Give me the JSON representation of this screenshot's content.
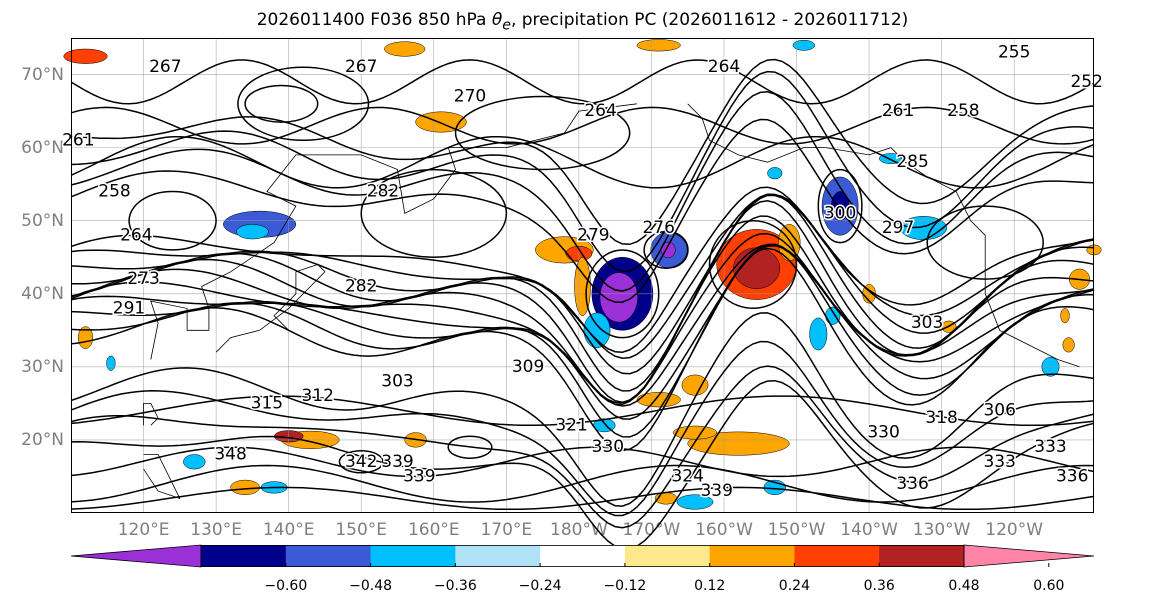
{
  "title": {
    "prefix": "2026011400 F036 850 hPa ",
    "symbol": "θ",
    "subscript": "e",
    "suffix": ", precipitation PC (2026011612 - 2026011712)"
  },
  "chart_data": {
    "type": "heatmap",
    "title": "2026011400 F036 850 hPa θe, precipitation PC (2026011612 - 2026011712)",
    "projection": "Plate Carree map, approx. 110°E–110°W, 10°N–75°N",
    "lat_ticks": [
      "20°N",
      "30°N",
      "40°N",
      "50°N",
      "60°N",
      "70°N"
    ],
    "lon_ticks": [
      "120°E",
      "130°E",
      "140°E",
      "150°E",
      "160°E",
      "170°E",
      "180°W",
      "170°W",
      "160°W",
      "150°W",
      "140°W",
      "130°W",
      "120°W"
    ],
    "grid": true,
    "colorbar": {
      "orientation": "horizontal",
      "extend": "both",
      "ticks": [
        "−0.60",
        "−0.48",
        "−0.36",
        "−0.24",
        "−0.12",
        "0.12",
        "0.24",
        "0.36",
        "0.48",
        "0.60"
      ],
      "tick_values": [
        -0.6,
        -0.48,
        -0.36,
        -0.24,
        -0.12,
        0.12,
        0.24,
        0.36,
        0.48,
        0.6
      ],
      "colors": [
        "#9b30d9",
        "#00008b",
        "#3b5bd6",
        "#00bfff",
        "#b0e2f7",
        "#ffffff",
        "#fde98b",
        "#ffa500",
        "#ff4000",
        "#b22222",
        "#ff85a8"
      ]
    },
    "contour_variable": "850 hPa θe (K)",
    "contour_labels": [
      {
        "text": "267",
        "lon": 123,
        "lat": 71
      },
      {
        "text": "267",
        "lon": 150,
        "lat": 71
      },
      {
        "text": "270",
        "lon": 165,
        "lat": 67
      },
      {
        "text": "264",
        "lon": 200,
        "lat": 71
      },
      {
        "text": "264",
        "lon": 183,
        "lat": 65
      },
      {
        "text": "255",
        "lon": 240,
        "lat": 73
      },
      {
        "text": "252",
        "lon": 250,
        "lat": 69
      },
      {
        "text": "261",
        "lon": 224,
        "lat": 65
      },
      {
        "text": "258",
        "lon": 233,
        "lat": 65
      },
      {
        "text": "261",
        "lon": 111,
        "lat": 61
      },
      {
        "text": "258",
        "lon": 116,
        "lat": 54
      },
      {
        "text": "282",
        "lon": 153,
        "lat": 54
      },
      {
        "text": "285",
        "lon": 226,
        "lat": 58
      },
      {
        "text": "279",
        "lon": 182,
        "lat": 48
      },
      {
        "text": "276",
        "lon": 191,
        "lat": 49
      },
      {
        "text": "300",
        "lon": 216,
        "lat": 51
      },
      {
        "text": "297",
        "lon": 224,
        "lat": 49
      },
      {
        "text": "264",
        "lon": 119,
        "lat": 48
      },
      {
        "text": "273",
        "lon": 120,
        "lat": 42
      },
      {
        "text": "282",
        "lon": 150,
        "lat": 41
      },
      {
        "text": "291",
        "lon": 118,
        "lat": 38
      },
      {
        "text": "303",
        "lon": 228,
        "lat": 36
      },
      {
        "text": "303",
        "lon": 155,
        "lat": 28
      },
      {
        "text": "309",
        "lon": 173,
        "lat": 30
      },
      {
        "text": "315",
        "lon": 137,
        "lat": 25
      },
      {
        "text": "312",
        "lon": 144,
        "lat": 26
      },
      {
        "text": "318",
        "lon": 230,
        "lat": 23
      },
      {
        "text": "306",
        "lon": 238,
        "lat": 24
      },
      {
        "text": "321",
        "lon": 179,
        "lat": 22
      },
      {
        "text": "330",
        "lon": 184,
        "lat": 19
      },
      {
        "text": "330",
        "lon": 222,
        "lat": 21
      },
      {
        "text": "333",
        "lon": 245,
        "lat": 19
      },
      {
        "text": "333",
        "lon": 238,
        "lat": 17
      },
      {
        "text": "336",
        "lon": 226,
        "lat": 14
      },
      {
        "text": "336",
        "lon": 248,
        "lat": 15
      },
      {
        "text": "348",
        "lon": 132,
        "lat": 18
      },
      {
        "text": "342",
        "lon": 150,
        "lat": 17
      },
      {
        "text": "339",
        "lon": 155,
        "lat": 17
      },
      {
        "text": "339",
        "lon": 158,
        "lat": 15
      },
      {
        "text": "324",
        "lon": 195,
        "lat": 15
      },
      {
        "text": "339",
        "lon": 199,
        "lat": 13
      }
    ],
    "precip_pc_patches": [
      {
        "lon": 136,
        "lat": 49.5,
        "rx": 5.0,
        "ry": 1.8,
        "value": -0.45
      },
      {
        "lon": 135,
        "lat": 48.5,
        "rx": 2.2,
        "ry": 1.0,
        "value": -0.3
      },
      {
        "lon": 161,
        "lat": 63.5,
        "rx": 3.5,
        "ry": 1.4,
        "value": 0.35
      },
      {
        "lon": 186,
        "lat": 40.0,
        "rx": 4.2,
        "ry": 5.0,
        "value": -0.55
      },
      {
        "lon": 185.5,
        "lat": 39.5,
        "rx": 2.6,
        "ry": 3.4,
        "value": -0.62
      },
      {
        "lon": 182.5,
        "lat": 35.0,
        "rx": 1.8,
        "ry": 2.4,
        "value": -0.3
      },
      {
        "lon": 178,
        "lat": 46.0,
        "rx": 4.0,
        "ry": 1.8,
        "value": 0.3
      },
      {
        "lon": 180,
        "lat": 45.5,
        "rx": 1.8,
        "ry": 1.0,
        "value": 0.45
      },
      {
        "lon": 180.5,
        "lat": 41.0,
        "rx": 1.1,
        "ry": 4.0,
        "value": 0.3
      },
      {
        "lon": 192.5,
        "lat": 46.0,
        "rx": 2.6,
        "ry": 2.5,
        "value": -0.4
      },
      {
        "lon": 192.3,
        "lat": 46.0,
        "rx": 1.0,
        "ry": 1.1,
        "value": -0.62
      },
      {
        "lon": 204.5,
        "lat": 44.0,
        "rx": 5.5,
        "ry": 4.8,
        "value": 0.45
      },
      {
        "lon": 204.5,
        "lat": 43.5,
        "rx": 3.2,
        "ry": 2.8,
        "value": 0.55
      },
      {
        "lon": 209,
        "lat": 47.0,
        "rx": 1.5,
        "ry": 2.5,
        "value": 0.3
      },
      {
        "lon": 216,
        "lat": 52.0,
        "rx": 2.5,
        "ry": 4.0,
        "value": -0.4
      },
      {
        "lon": 216,
        "lat": 52.0,
        "rx": 1.2,
        "ry": 2.0,
        "value": -0.5
      },
      {
        "lon": 227.5,
        "lat": 49.0,
        "rx": 3.2,
        "ry": 1.6,
        "value": -0.3
      },
      {
        "lon": 223,
        "lat": 58.5,
        "rx": 1.6,
        "ry": 0.7,
        "value": -0.28
      },
      {
        "lon": 207,
        "lat": 56.5,
        "rx": 1.0,
        "ry": 0.8,
        "value": -0.28
      },
      {
        "lon": 156,
        "lat": 73.5,
        "rx": 2.8,
        "ry": 1.0,
        "value": 0.3
      },
      {
        "lon": 112,
        "lat": 72.5,
        "rx": 3.0,
        "ry": 1.0,
        "value": 0.42
      },
      {
        "lon": 191,
        "lat": 74.0,
        "rx": 3.0,
        "ry": 0.8,
        "value": 0.3
      },
      {
        "lon": 211,
        "lat": 74.0,
        "rx": 1.5,
        "ry": 0.7,
        "value": -0.28
      },
      {
        "lon": 202,
        "lat": 19.5,
        "rx": 7.0,
        "ry": 1.6,
        "value": 0.35
      },
      {
        "lon": 196,
        "lat": 21.0,
        "rx": 3.0,
        "ry": 0.9,
        "value": 0.3
      },
      {
        "lon": 191,
        "lat": 25.5,
        "rx": 3.0,
        "ry": 1.0,
        "value": 0.3
      },
      {
        "lon": 196,
        "lat": 27.5,
        "rx": 1.8,
        "ry": 1.4,
        "value": 0.3
      },
      {
        "lon": 213,
        "lat": 34.5,
        "rx": 1.2,
        "ry": 2.2,
        "value": -0.3
      },
      {
        "lon": 215,
        "lat": 37.0,
        "rx": 1.0,
        "ry": 1.2,
        "value": -0.3
      },
      {
        "lon": 220,
        "lat": 40.0,
        "rx": 0.9,
        "ry": 1.3,
        "value": 0.28
      },
      {
        "lon": 143,
        "lat": 20.0,
        "rx": 4.0,
        "ry": 1.2,
        "value": 0.35
      },
      {
        "lon": 140,
        "lat": 20.5,
        "rx": 2.0,
        "ry": 0.8,
        "value": 0.5
      },
      {
        "lon": 157.5,
        "lat": 20.0,
        "rx": 1.5,
        "ry": 1.0,
        "value": 0.3
      },
      {
        "lon": 138,
        "lat": 13.5,
        "rx": 1.8,
        "ry": 0.8,
        "value": -0.3
      },
      {
        "lon": 134,
        "lat": 13.5,
        "rx": 2.0,
        "ry": 1.0,
        "value": 0.3
      },
      {
        "lon": 127,
        "lat": 17.0,
        "rx": 1.5,
        "ry": 1.0,
        "value": -0.3
      },
      {
        "lon": 196,
        "lat": 11.5,
        "rx": 2.5,
        "ry": 1.0,
        "value": -0.3
      },
      {
        "lon": 192,
        "lat": 12.0,
        "rx": 1.5,
        "ry": 0.8,
        "value": 0.3
      },
      {
        "lon": 112,
        "lat": 34.0,
        "rx": 1.0,
        "ry": 1.5,
        "value": 0.28
      },
      {
        "lon": 115.5,
        "lat": 30.5,
        "rx": 0.6,
        "ry": 1.0,
        "value": -0.28
      },
      {
        "lon": 183.5,
        "lat": 22.0,
        "rx": 1.5,
        "ry": 0.9,
        "value": -0.3
      },
      {
        "lon": 207,
        "lat": 13.5,
        "rx": 1.5,
        "ry": 1.0,
        "value": -0.3
      },
      {
        "lon": 245,
        "lat": 30.0,
        "rx": 1.2,
        "ry": 1.3,
        "value": -0.3
      },
      {
        "lon": 247.5,
        "lat": 33.0,
        "rx": 0.8,
        "ry": 1.0,
        "value": 0.3
      },
      {
        "lon": 249,
        "lat": 42.0,
        "rx": 1.4,
        "ry": 1.4,
        "value": 0.28
      },
      {
        "lon": 247,
        "lat": 37.0,
        "rx": 0.6,
        "ry": 1.0,
        "value": 0.28
      },
      {
        "lon": 231,
        "lat": 35.5,
        "rx": 1.0,
        "ry": 0.8,
        "value": 0.35
      },
      {
        "lon": 251,
        "lat": 46.0,
        "rx": 1.0,
        "ry": 0.7,
        "value": 0.3
      }
    ]
  }
}
